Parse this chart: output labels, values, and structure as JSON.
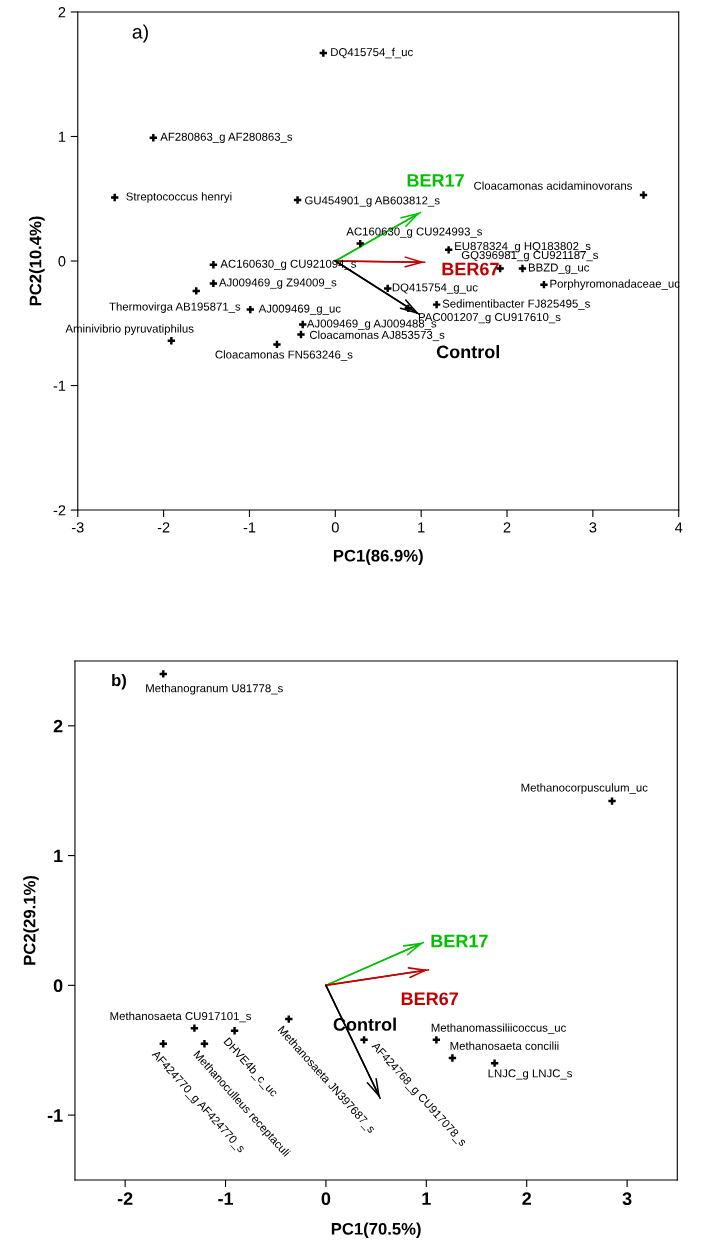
{
  "chart_data": [
    {
      "type": "scatter",
      "title": "a)",
      "xlabel": "PC1(86.9%)",
      "ylabel": "PC2(10.4%)",
      "xlim": [
        -3,
        4
      ],
      "ylim": [
        -2,
        2
      ],
      "xticks": [
        -3,
        -2,
        -1,
        0,
        1,
        2,
        3,
        4
      ],
      "yticks": [
        -2,
        -1,
        0,
        1,
        2
      ],
      "grid": false,
      "marker": "cross",
      "series": [
        {
          "color": "#000000",
          "x": [
            -0.14,
            -2.12,
            -2.57,
            -0.44,
            3.59,
            0.29,
            1.32,
            1.92,
            2.18,
            2.43,
            -1.42,
            -1.42,
            -1.62,
            -0.99,
            -1.91,
            -0.68,
            -0.38,
            -0.4,
            0.61,
            1.18,
            0.85
          ],
          "values": [
            1.67,
            0.99,
            0.51,
            0.49,
            0.53,
            0.14,
            0.09,
            -0.06,
            -0.06,
            -0.19,
            -0.03,
            -0.18,
            -0.24,
            -0.39,
            -0.64,
            -0.67,
            -0.51,
            -0.59,
            -0.22,
            -0.35,
            -0.38
          ]
        },
        {
          "type": "line",
          "marker": "none",
          "name": "BER17",
          "color": "#00c000",
          "x": [
            0,
            0.99
          ],
          "values": [
            0,
            0.39
          ]
        },
        {
          "type": "line",
          "marker": "none",
          "name": "BER67",
          "color": "#c00000",
          "x": [
            0,
            1.04
          ],
          "values": [
            0,
            -0.01
          ]
        },
        {
          "type": "line",
          "marker": "none",
          "name": "Control",
          "color": "#000000",
          "x": [
            0,
            0.98
          ],
          "values": [
            0,
            -0.43
          ]
        }
      ],
      "annotations": [
        {
          "text": "DQ415754_f_uc",
          "x": -0.14,
          "y": 1.67
        },
        {
          "text": "AF280863_g AF280863_s",
          "x": -2.12,
          "y": 0.99
        },
        {
          "text": "Streptococcus henryi",
          "x": -2.57,
          "y": 0.51
        },
        {
          "text": "GU454901_g AB603812_s",
          "x": -0.44,
          "y": 0.49
        },
        {
          "text": "Cloacamonas acidaminovorans",
          "x": 3.59,
          "y": 0.53
        },
        {
          "text": "AC160630_g CU924993_s",
          "x": 0.29,
          "y": 0.14
        },
        {
          "text": "EU878324_g HQ183802_s",
          "x": 1.32,
          "y": 0.09
        },
        {
          "text": "GQ396981_g CU921187_s",
          "x": 1.92,
          "y": -0.06
        },
        {
          "text": "BBZD_g_uc",
          "x": 2.18,
          "y": -0.06
        },
        {
          "text": "Porphyromonadaceae_uc",
          "x": 2.43,
          "y": -0.19
        },
        {
          "text": "AC160630_g CU921094_s",
          "x": -1.42,
          "y": -0.03
        },
        {
          "text": "AJ009469_g Z94009_s",
          "x": -1.42,
          "y": -0.18
        },
        {
          "text": "Thermovirga AB195871_s",
          "x": -1.62,
          "y": -0.24
        },
        {
          "text": "AJ009469_g_uc",
          "x": -0.99,
          "y": -0.39
        },
        {
          "text": "Aminivibrio pyruvatiphilus",
          "x": -1.91,
          "y": -0.64
        },
        {
          "text": "Cloacamonas FN563246_s",
          "x": -0.68,
          "y": -0.67
        },
        {
          "text": "AJ009469_g AJ009488_s",
          "x": -0.38,
          "y": -0.51
        },
        {
          "text": "Cloacamonas AJ853573_s",
          "x": -0.4,
          "y": -0.59
        },
        {
          "text": "DQ415754_g_uc",
          "x": 0.61,
          "y": -0.22
        },
        {
          "text": "Sedimentibacter FJ825495_s",
          "x": 1.18,
          "y": -0.35
        },
        {
          "text": "PAC001207_g CU917610_s",
          "x": 0.85,
          "y": -0.38
        }
      ]
    },
    {
      "type": "scatter",
      "title": "b)",
      "xlabel": "PC1(70.5%)",
      "ylabel": "PC2(29.1%)",
      "xlim": [
        -2.5,
        3.5
      ],
      "ylim": [
        -1.5,
        2.5
      ],
      "xticks": [
        -2,
        -1,
        0,
        1,
        2,
        3
      ],
      "yticks": [
        -1,
        0,
        1,
        2
      ],
      "grid": false,
      "marker": "cross",
      "series": [
        {
          "color": "#000000",
          "x": [
            -1.62,
            2.85,
            -1.31,
            -1.62,
            -1.21,
            -0.91,
            -0.37,
            0.38,
            1.1,
            1.26,
            1.68
          ],
          "values": [
            2.4,
            1.42,
            -0.33,
            -0.45,
            -0.45,
            -0.35,
            -0.26,
            -0.42,
            -0.42,
            -0.56,
            -0.6
          ]
        },
        {
          "type": "line",
          "marker": "none",
          "name": "BER17",
          "color": "#00c000",
          "x": [
            0,
            0.97
          ],
          "values": [
            0,
            0.33
          ]
        },
        {
          "type": "line",
          "marker": "none",
          "name": "BER67",
          "color": "#c00000",
          "x": [
            0,
            1.02
          ],
          "values": [
            0,
            0.12
          ]
        },
        {
          "type": "line",
          "marker": "none",
          "name": "Control",
          "color": "#000000",
          "x": [
            0,
            0.54
          ],
          "values": [
            0,
            -0.87
          ]
        }
      ],
      "annotations": [
        {
          "text": "Methanogranum U81778_s",
          "x": -1.62,
          "y": 2.4
        },
        {
          "text": "Methanocorpusculum_uc",
          "x": 2.85,
          "y": 1.42
        },
        {
          "text": "Methanosaeta CU917101_s",
          "x": -1.31,
          "y": -0.33
        },
        {
          "text": "AF424770_g AF424770_s",
          "x": -1.62,
          "y": -0.45
        },
        {
          "text": "Methanoculleus receptaculi",
          "x": -1.21,
          "y": -0.45
        },
        {
          "text": "DHVE4b_c_uc",
          "x": -0.91,
          "y": -0.35
        },
        {
          "text": "Methanosaeta JN397687_s",
          "x": -0.37,
          "y": -0.26
        },
        {
          "text": "AF424768_g CU917078_s",
          "x": 0.38,
          "y": -0.42
        },
        {
          "text": "Methanomassiliicoccus_uc",
          "x": 1.1,
          "y": -0.42
        },
        {
          "text": "Methanosaeta concilii",
          "x": 1.26,
          "y": -0.56
        },
        {
          "text": "LNJC_g LNJC_s",
          "x": 1.68,
          "y": -0.6
        }
      ]
    }
  ]
}
